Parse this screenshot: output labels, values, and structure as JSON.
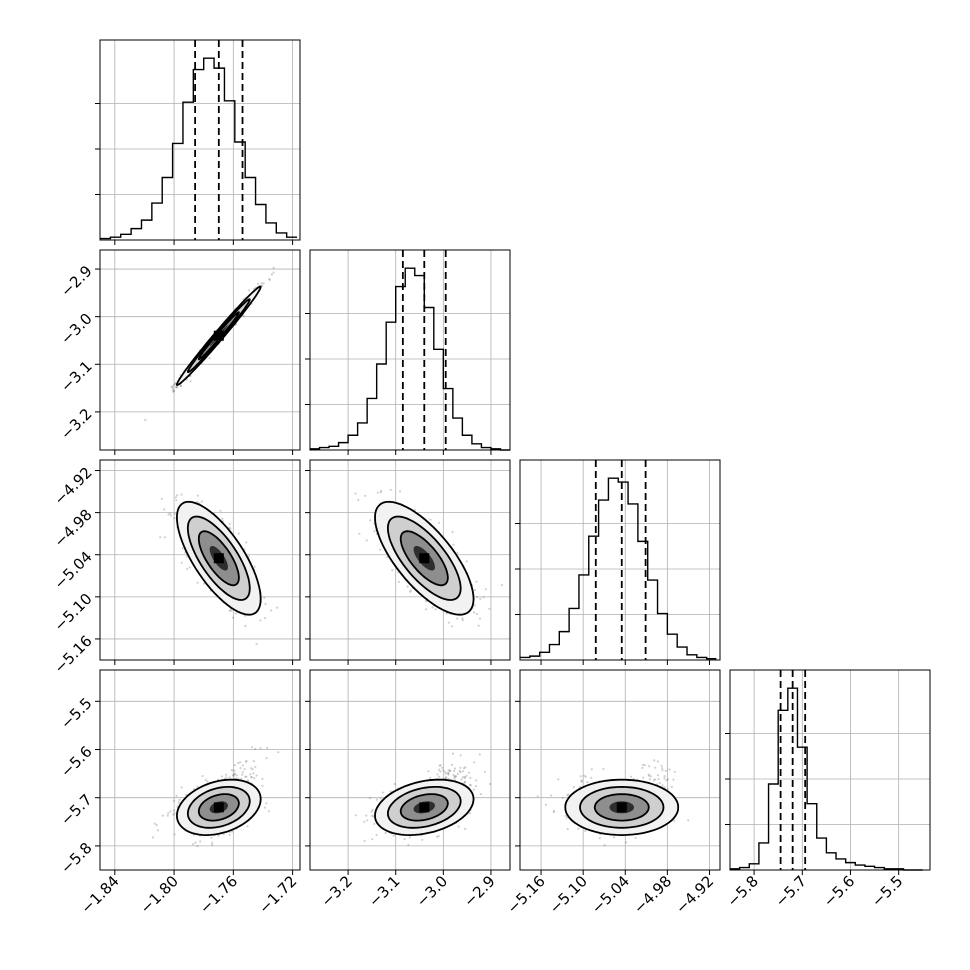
{
  "chart_data": {
    "type": "corner",
    "grid": true,
    "parameters": [
      {
        "range": [
          -1.85,
          -1.715
        ],
        "ticks": [
          -1.84,
          -1.8,
          -1.76,
          -1.72
        ],
        "tick_labels": [
          "−1.84",
          "−1.80",
          "−1.76",
          "−1.72"
        ],
        "quantiles": [
          -1.7858,
          -1.7698,
          -1.7538
        ],
        "median": -1.7698,
        "sigma": 0.0123
      },
      {
        "range": [
          -3.28,
          -2.86
        ],
        "ticks": [
          -3.2,
          -3.1,
          -3.0,
          -2.9
        ],
        "tick_labels": [
          "−3.2",
          "−3.1",
          "−3.0",
          "−2.9"
        ],
        "quantiles": [
          -3.085,
          -3.04,
          -2.995
        ],
        "median": -3.04,
        "sigma": 0.045
      },
      {
        "range": [
          -5.19,
          -4.905
        ],
        "ticks": [
          -5.16,
          -5.1,
          -5.04,
          -4.98,
          -4.92
        ],
        "tick_labels": [
          "−5.16",
          "−5.10",
          "−5.04",
          "−4.98",
          "−4.92"
        ],
        "quantiles": [
          -5.082,
          -5.045,
          -5.011
        ],
        "median": -5.045,
        "sigma": 0.035
      },
      {
        "range": [
          -5.85,
          -5.435
        ],
        "ticks": [
          -5.8,
          -5.7,
          -5.6,
          -5.5
        ],
        "tick_labels": [
          "−5.8",
          "−5.7",
          "−5.6",
          "−5.5"
        ],
        "quantiles": [
          -5.745,
          -5.72,
          -5.694
        ],
        "median": -5.72,
        "sigma": 0.025
      }
    ],
    "histograms": [
      {
        "param": 0,
        "bin_edges": [
          -1.85,
          -1.843,
          -1.836,
          -1.829,
          -1.822,
          -1.815,
          -1.808,
          -1.801,
          -1.794,
          -1.787,
          -1.78,
          -1.773,
          -1.766,
          -1.759,
          -1.752,
          -1.745,
          -1.738,
          -1.731,
          -1.724,
          -1.717
        ],
        "counts": [
          1,
          2,
          4,
          8,
          14,
          26,
          44,
          68,
          97,
          120,
          128,
          121,
          98,
          69,
          44,
          25,
          12,
          5,
          2
        ]
      },
      {
        "param": 1,
        "bin_edges": [
          -3.28,
          -3.26,
          -3.24,
          -3.22,
          -3.2,
          -3.18,
          -3.16,
          -3.14,
          -3.12,
          -3.1,
          -3.08,
          -3.06,
          -3.04,
          -3.02,
          -3.0,
          -2.98,
          -2.96,
          -2.94,
          -2.92,
          -2.9,
          -2.88,
          -2.86
        ],
        "counts": [
          1,
          2,
          3,
          6,
          12,
          22,
          42,
          70,
          104,
          133,
          148,
          142,
          116,
          82,
          50,
          26,
          12,
          5,
          2,
          1,
          0
        ]
      },
      {
        "param": 2,
        "bin_edges": [
          -5.19,
          -5.176,
          -5.162,
          -5.148,
          -5.134,
          -5.12,
          -5.106,
          -5.092,
          -5.078,
          -5.064,
          -5.05,
          -5.036,
          -5.022,
          -5.008,
          -4.994,
          -4.98,
          -4.966,
          -4.952,
          -4.938,
          -4.924,
          -4.91
        ],
        "counts": [
          2,
          3,
          6,
          12,
          22,
          40,
          66,
          96,
          124,
          141,
          138,
          121,
          92,
          62,
          36,
          20,
          10,
          4,
          2,
          1
        ]
      },
      {
        "param": 3,
        "bin_edges": [
          -5.85,
          -5.83,
          -5.81,
          -5.79,
          -5.77,
          -5.75,
          -5.73,
          -5.71,
          -5.69,
          -5.67,
          -5.65,
          -5.63,
          -5.61,
          -5.59,
          -5.57,
          -5.55,
          -5.53,
          -5.51,
          -5.49,
          -5.47,
          -5.45
        ],
        "counts": [
          1,
          2,
          5,
          22,
          70,
          130,
          148,
          100,
          54,
          26,
          14,
          9,
          6,
          4,
          3,
          2,
          1,
          1,
          0,
          0
        ]
      }
    ],
    "pairs": [
      {
        "x_param": 0,
        "y_param": 1,
        "correlation": 0.99
      },
      {
        "x_param": 0,
        "y_param": 2,
        "correlation": -0.72
      },
      {
        "x_param": 1,
        "y_param": 2,
        "correlation": -0.72
      },
      {
        "x_param": 0,
        "y_param": 3,
        "correlation": 0.3
      },
      {
        "x_param": 1,
        "y_param": 3,
        "correlation": 0.3
      },
      {
        "x_param": 2,
        "y_param": 3,
        "correlation": 0.0
      }
    ]
  }
}
